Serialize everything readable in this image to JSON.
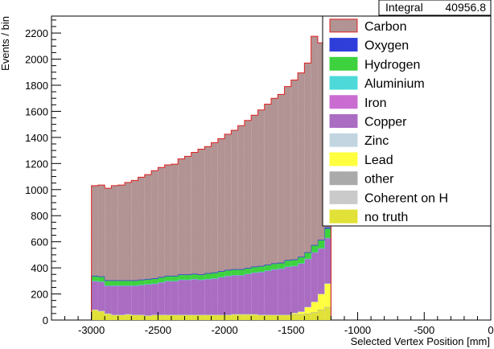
{
  "stats_box": {
    "label": "Integral",
    "value": "40956.8"
  },
  "chart_data": {
    "type": "histogram-stacked",
    "xlabel": "Selected Vertex Position [mm]",
    "ylabel": "Events / bin",
    "xlim": [
      -3300,
      0
    ],
    "ylim": [
      0,
      2330
    ],
    "x_ticks": [
      -3000,
      -2500,
      -2000,
      -1500,
      -1000,
      -500,
      0
    ],
    "y_ticks": [
      0,
      200,
      400,
      600,
      800,
      1000,
      1200,
      1400,
      1600,
      1800,
      2000,
      2200
    ],
    "bin_edges_start": -3000,
    "bin_width": 50,
    "bin_count": 36,
    "grid": false,
    "legend_position": "top-right",
    "legend": [
      "Carbon",
      "Oxygen",
      "Hydrogen",
      "Aluminium",
      "Iron",
      "Copper",
      "Zinc",
      "Lead",
      "other",
      "Coherent on H",
      "no truth"
    ],
    "series": [
      {
        "name": "no truth",
        "color": "#e8e83a",
        "pattern": "hatch",
        "values": [
          80,
          70,
          50,
          40,
          40,
          45,
          40,
          40,
          35,
          40,
          40,
          40,
          40,
          40,
          40,
          40,
          40,
          40,
          40,
          40,
          40,
          45,
          45,
          45,
          45,
          40,
          40,
          40,
          40,
          40,
          45,
          45,
          50,
          60,
          80,
          100
        ]
      },
      {
        "name": "Coherent on H",
        "color": "#d0d0d0",
        "pattern": "hatch",
        "values": [
          0,
          0,
          0,
          0,
          0,
          0,
          0,
          0,
          0,
          0,
          0,
          0,
          0,
          0,
          0,
          0,
          0,
          0,
          0,
          0,
          0,
          0,
          0,
          0,
          0,
          0,
          0,
          0,
          0,
          0,
          0,
          0,
          0,
          0,
          0,
          0
        ]
      },
      {
        "name": "other",
        "color": "#b0b0b0",
        "pattern": "hatch",
        "values": [
          0,
          0,
          0,
          0,
          0,
          0,
          0,
          0,
          0,
          0,
          0,
          0,
          0,
          0,
          0,
          0,
          0,
          0,
          0,
          0,
          0,
          0,
          0,
          0,
          0,
          0,
          0,
          0,
          0,
          0,
          0,
          0,
          0,
          0,
          0,
          0
        ]
      },
      {
        "name": "Lead",
        "color": "#ffff40",
        "pattern": "solid",
        "values": [
          0,
          0,
          0,
          0,
          0,
          0,
          0,
          0,
          0,
          0,
          0,
          0,
          0,
          0,
          0,
          0,
          0,
          0,
          0,
          0,
          0,
          0,
          0,
          0,
          0,
          0,
          0,
          0,
          0,
          0,
          10,
          20,
          50,
          80,
          120,
          180
        ]
      },
      {
        "name": "Zinc",
        "color": "#c8dce8",
        "pattern": "hatch",
        "values": [
          0,
          0,
          0,
          0,
          0,
          0,
          0,
          0,
          0,
          0,
          0,
          0,
          0,
          0,
          0,
          0,
          0,
          0,
          0,
          0,
          0,
          0,
          0,
          0,
          0,
          0,
          0,
          0,
          0,
          0,
          0,
          0,
          0,
          0,
          0,
          0
        ]
      },
      {
        "name": "Copper",
        "color": "#b070c8",
        "pattern": "hatch",
        "values": [
          220,
          225,
          215,
          225,
          225,
          220,
          225,
          230,
          240,
          240,
          250,
          260,
          260,
          270,
          270,
          275,
          270,
          275,
          280,
          290,
          300,
          300,
          300,
          310,
          320,
          330,
          340,
          350,
          355,
          370,
          360,
          370,
          370,
          380,
          350,
          350
        ]
      },
      {
        "name": "Iron",
        "color": "#d070d8",
        "pattern": "hatch",
        "values": [
          0,
          0,
          0,
          0,
          0,
          0,
          0,
          0,
          0,
          0,
          0,
          0,
          0,
          0,
          0,
          0,
          0,
          0,
          0,
          0,
          0,
          0,
          0,
          0,
          0,
          0,
          0,
          0,
          0,
          0,
          0,
          0,
          0,
          0,
          0,
          0
        ]
      },
      {
        "name": "Aluminium",
        "color": "#50e0e0",
        "pattern": "hatch",
        "values": [
          0,
          0,
          0,
          0,
          0,
          0,
          0,
          0,
          0,
          0,
          0,
          0,
          0,
          0,
          0,
          0,
          0,
          0,
          0,
          0,
          0,
          0,
          0,
          0,
          0,
          0,
          0,
          0,
          0,
          0,
          0,
          0,
          0,
          0,
          0,
          0
        ]
      },
      {
        "name": "Hydrogen",
        "color": "#40d840",
        "pattern": "hatch",
        "values": [
          35,
          35,
          35,
          35,
          35,
          35,
          35,
          35,
          35,
          35,
          35,
          35,
          35,
          35,
          35,
          35,
          35,
          40,
          40,
          40,
          40,
          40,
          40,
          40,
          40,
          40,
          40,
          40,
          40,
          45,
          45,
          45,
          45,
          50,
          60,
          70
        ]
      },
      {
        "name": "Oxygen",
        "color": "#3040e0",
        "pattern": "hatch",
        "values": [
          5,
          5,
          5,
          5,
          5,
          5,
          5,
          5,
          5,
          5,
          5,
          5,
          5,
          5,
          5,
          5,
          5,
          5,
          5,
          5,
          5,
          5,
          5,
          5,
          5,
          5,
          5,
          5,
          5,
          5,
          5,
          5,
          5,
          5,
          5,
          10
        ]
      },
      {
        "name": "Carbon",
        "color": "#b89898",
        "pattern": "hatch",
        "values": [
          690,
          700,
          705,
          725,
          730,
          750,
          765,
          785,
          800,
          825,
          840,
          850,
          855,
          885,
          905,
          930,
          960,
          970,
          995,
          1015,
          1040,
          1065,
          1100,
          1130,
          1160,
          1195,
          1230,
          1265,
          1290,
          1330,
          1375,
          1410,
          1450,
          1600,
          1510,
          1390
        ]
      }
    ]
  }
}
